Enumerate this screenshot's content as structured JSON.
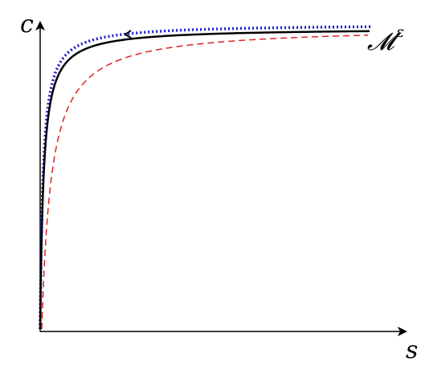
{
  "axes": {
    "x_label": "s",
    "y_label": "c"
  },
  "curves": {
    "manifold": {
      "label": "𝓜",
      "superscript": "ε",
      "color": "#000000",
      "style": "solid"
    },
    "dotted": {
      "color": "#1a1acc",
      "style": "dotted"
    },
    "dashed": {
      "color": "#dd2222",
      "style": "dashed"
    }
  }
}
